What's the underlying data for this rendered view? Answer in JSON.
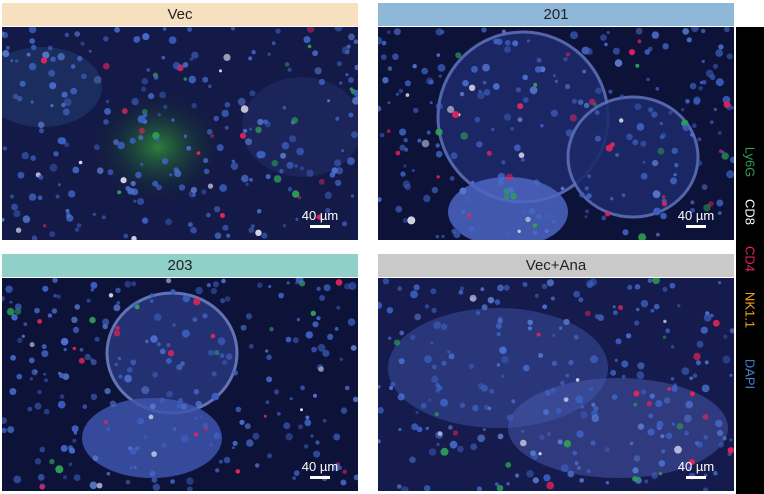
{
  "panels": [
    {
      "title": "Vec",
      "header_color": "#f7e0bf",
      "scale_label": "40 µm"
    },
    {
      "title": "201",
      "header_color": "#8fb7d8",
      "scale_label": "40 µm"
    },
    {
      "title": "203",
      "header_color": "#8fd0c8",
      "scale_label": "40 µm"
    },
    {
      "title": "Vec+Ana",
      "header_color": "#c9c9c9",
      "scale_label": "40 µm"
    }
  ],
  "legend": [
    {
      "label": "Ly6G",
      "color": "#2f9e55"
    },
    {
      "label": "CD8",
      "color": "#ffffff"
    },
    {
      "label": "CD4",
      "color": "#e2245a"
    },
    {
      "label": "NK1.1",
      "color": "#f5a623"
    },
    {
      "label": "DAPI",
      "color": "#3f7fd9"
    }
  ]
}
